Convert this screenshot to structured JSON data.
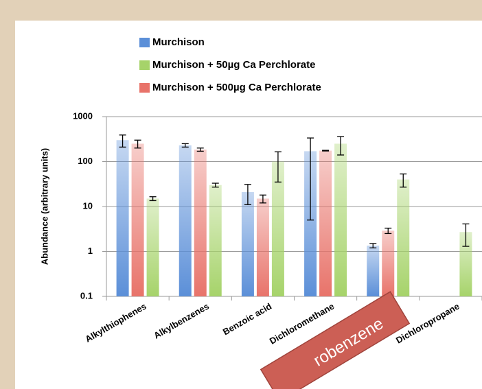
{
  "chart_data": {
    "type": "bar",
    "y_label": "Abundance (arbitrary units)",
    "log_scale": true,
    "grid": true,
    "categories": [
      "Alkylthiophenes",
      "Alkylbenzenes",
      "Benzoic acid",
      "Dichloromethane",
      null,
      "Dichloropropane"
    ],
    "series": [
      {
        "name": "Murchison",
        "color": "#5b8fd8",
        "values": [
          300,
          230,
          21,
          170,
          1.35,
          null
        ],
        "errors": [
          90,
          20,
          10,
          165,
          0.15,
          null
        ]
      },
      {
        "name": "Murchison + 50µg Ca Perchlorate",
        "color": "#a6d36a",
        "values": [
          15,
          30,
          100,
          250,
          40,
          2.7
        ],
        "errors": [
          1.5,
          3,
          65,
          110,
          13,
          1.4
        ]
      },
      {
        "name": "Murchison + 500µg Ca Perchlorate",
        "color": "#e8736a",
        "values": [
          250,
          185,
          15,
          175,
          2.9,
          null
        ],
        "errors": [
          50,
          15,
          3,
          3,
          0.4,
          null
        ]
      }
    ],
    "ylim": [
      0.1,
      1000
    ],
    "yticks": [
      0.1,
      1,
      10,
      100,
      1000
    ],
    "annotation": "robenzene"
  }
}
